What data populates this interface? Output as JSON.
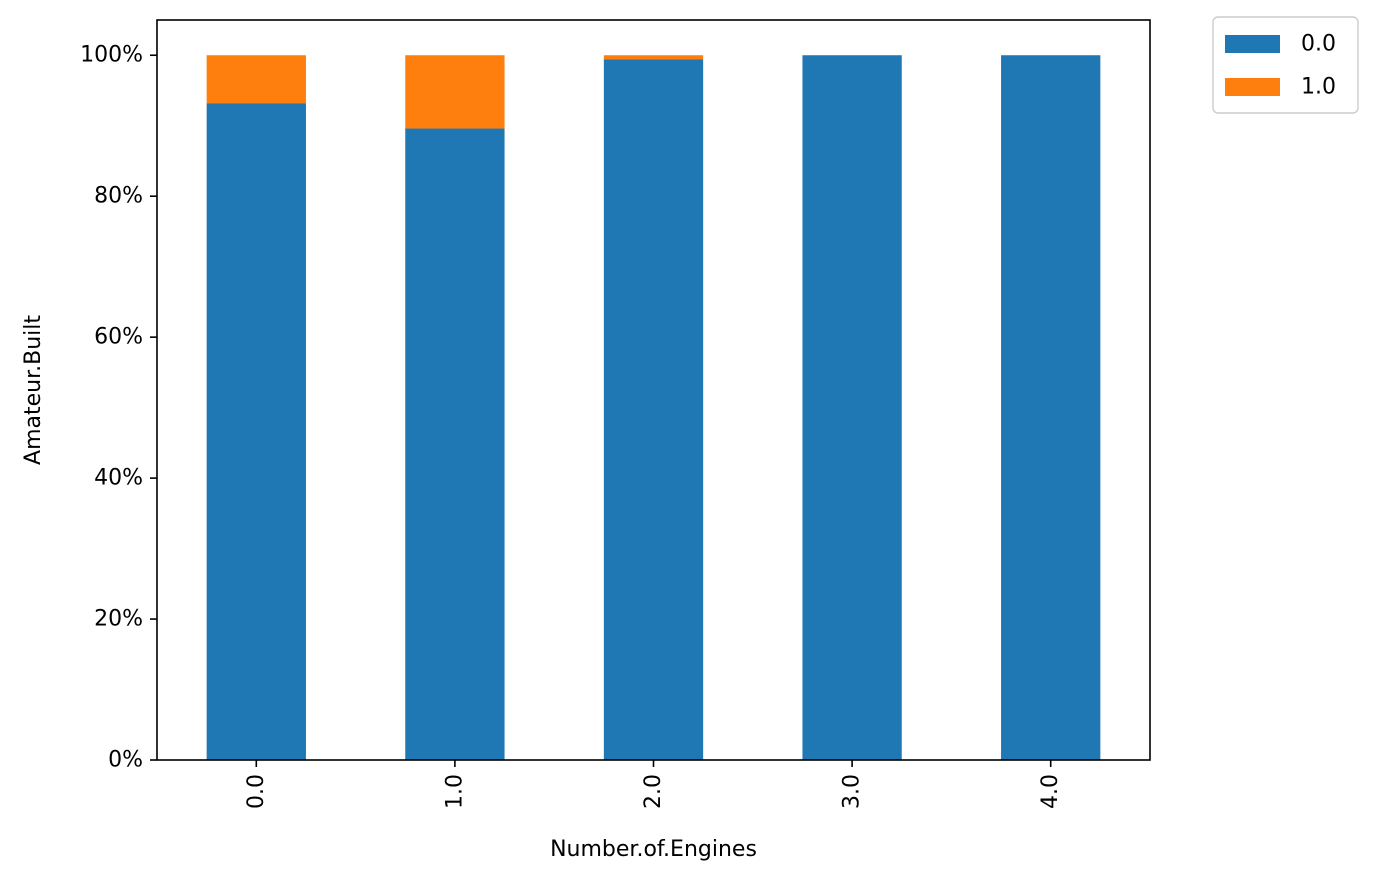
{
  "chart_data": {
    "type": "bar",
    "stacked": true,
    "categories": [
      "0.0",
      "1.0",
      "2.0",
      "3.0",
      "4.0"
    ],
    "series": [
      {
        "name": "0.0",
        "color": "#1f77b4",
        "values": [
          93.2,
          89.6,
          99.4,
          100.0,
          100.0
        ]
      },
      {
        "name": "1.0",
        "color": "#ff7f0e",
        "values": [
          6.8,
          10.4,
          0.6,
          0.0,
          0.0
        ]
      }
    ],
    "xlabel": "Number.of.Engines",
    "ylabel": "Amateur.Built",
    "ylim": [
      0,
      105
    ],
    "yticks": [
      0,
      20,
      40,
      60,
      80,
      100
    ],
    "ytick_labels": [
      "0%",
      "20%",
      "40%",
      "60%",
      "80%",
      "100%"
    ],
    "xtick_rotation": "vertical",
    "grid": false,
    "legend": {
      "placement": "outside-top-right",
      "entries": [
        "0.0",
        "1.0"
      ]
    }
  }
}
